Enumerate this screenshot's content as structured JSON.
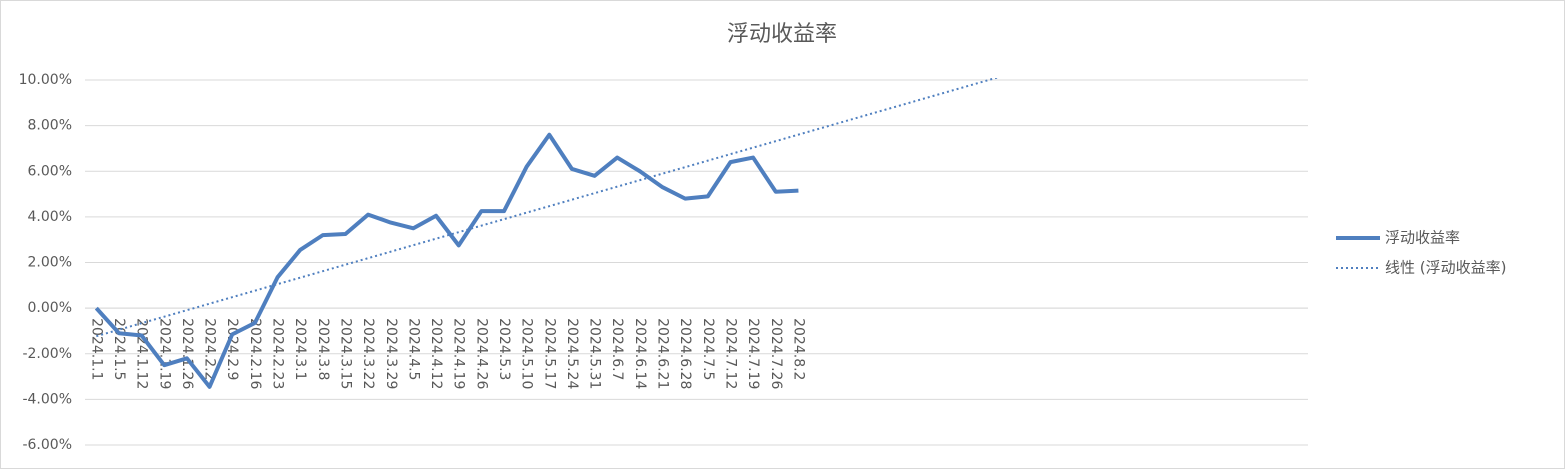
{
  "chart_data": {
    "type": "line",
    "title": "浮动收益率",
    "categories": [
      "2024.1.1",
      "2024.1.5",
      "2024.1.12",
      "2024.1.19",
      "2024.1.26",
      "2024.2.2",
      "2024.2.9",
      "2024.2.16",
      "2024.2.23",
      "2024.3.1",
      "2024.3.8",
      "2024.3.15",
      "2024.3.22",
      "2024.3.29",
      "2024.4.5",
      "2024.4.12",
      "2024.4.19",
      "2024.4.26",
      "2024.5.3",
      "2024.5.10",
      "2024.5.17",
      "2024.5.24",
      "2024.5.31",
      "2024.6.7",
      "2024.6.14",
      "2024.6.21",
      "2024.6.28",
      "2024.7.5",
      "2024.7.12",
      "2024.7.19",
      "2024.7.26",
      "2024.8.2",
      null,
      null,
      null,
      null,
      null,
      null,
      null,
      null,
      null,
      null,
      null,
      null,
      null,
      null,
      null,
      null,
      null,
      null,
      null,
      null,
      null,
      null
    ],
    "series": [
      {
        "name": "浮动收益率",
        "color": "#4f7fbf",
        "dash": "solid",
        "width": 4,
        "values": [
          0,
          -1.1,
          -1.2,
          -2.5,
          -2.2,
          -3.45,
          -1.15,
          -0.65,
          1.35,
          2.55,
          3.2,
          3.25,
          4.1,
          3.75,
          3.5,
          4.05,
          2.75,
          4.25,
          4.25,
          6.2,
          7.6,
          6.1,
          5.8,
          6.6,
          6.0,
          5.3,
          4.8,
          4.9,
          6.4,
          6.6,
          5.1,
          5.15,
          null,
          null,
          null,
          null,
          null,
          null,
          null,
          null,
          null,
          null,
          null,
          null,
          null,
          null,
          null,
          null,
          null,
          null,
          null,
          null,
          null,
          null
        ]
      },
      {
        "name": "线性 (浮动收益率)",
        "color": "#4f7fbf",
        "dash": "dotted",
        "width": 2,
        "values": [
          -1.23,
          -0.945,
          -0.66,
          -0.375,
          -0.09,
          0.195,
          0.48,
          0.765,
          1.05,
          1.335,
          1.62,
          1.905,
          2.19,
          2.475,
          2.76,
          3.045,
          3.33,
          3.615,
          3.9,
          4.185,
          4.47,
          4.755,
          5.04,
          5.325,
          5.61,
          5.895,
          6.18,
          6.465,
          6.75,
          7.035,
          7.32,
          7.605,
          7.89,
          8.175,
          8.46,
          8.745,
          9.03,
          9.315,
          9.6,
          9.885,
          10.17,
          null,
          null,
          null,
          null,
          null,
          null,
          null,
          null,
          null,
          null,
          null,
          null,
          null
        ]
      }
    ],
    "ylim": [
      -6,
      10
    ],
    "yticks": [
      {
        "value": -6,
        "label": "-6.00%"
      },
      {
        "value": -4,
        "label": "-4.00%"
      },
      {
        "value": -2,
        "label": "-2.00%"
      },
      {
        "value": 0,
        "label": "0.00%"
      },
      {
        "value": 2,
        "label": "2.00%"
      },
      {
        "value": 4,
        "label": "4.00%"
      },
      {
        "value": 6,
        "label": "6.00%"
      },
      {
        "value": 8,
        "label": "8.00%"
      },
      {
        "value": 10,
        "label": "10.00%"
      }
    ],
    "grid": true,
    "legend": "right"
  }
}
